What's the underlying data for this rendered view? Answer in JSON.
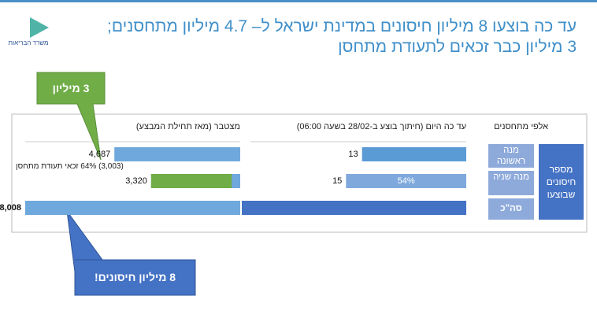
{
  "logo": "משרד הבריאות",
  "title": [
    "עד כה בוצעו 8 מיליון חיסונים במדינת ישראל ל– 4.7 מיליון מתחסנים;",
    "3 מיליון כבר זכאים לתעודת מתחסן"
  ],
  "units": "אלפי מתחסנים",
  "row_header": "מספר חיסונים שבוצעו",
  "rows": [
    "מנה ראשונה",
    "מנה שניה",
    "סה\"כ"
  ],
  "chart_data": [
    {
      "type": "bar",
      "orientation": "horizontal",
      "title": "עד כה היום (חיתוך בוצע ב-28/02 בשעה 06:00)",
      "values": [
        13,
        15,
        28
      ],
      "colors": [
        "#5b9bd5",
        "#7fa9dd",
        "#4472c4"
      ],
      "bar_texts": [
        null,
        "54%",
        null
      ]
    },
    {
      "type": "bar",
      "orientation": "horizontal",
      "title": "מצטבר (מאז תחילת המבצע)",
      "values": [
        4687,
        3320,
        8008
      ],
      "value_labels": [
        "4,687",
        "3,320",
        "8,008"
      ],
      "colors": [
        "#6fa8dc",
        "#6fa8dc",
        "#6fa8dc"
      ],
      "eligible_values": [
        null,
        3003,
        null
      ],
      "eligible_color": "#70ad47",
      "eligible_labels": [
        null,
        "(3,003) 64% זכאי תעודת מתחסן",
        null
      ]
    }
  ],
  "callouts": [
    "3 מיליון",
    "8 מיליון חיסונים!"
  ]
}
